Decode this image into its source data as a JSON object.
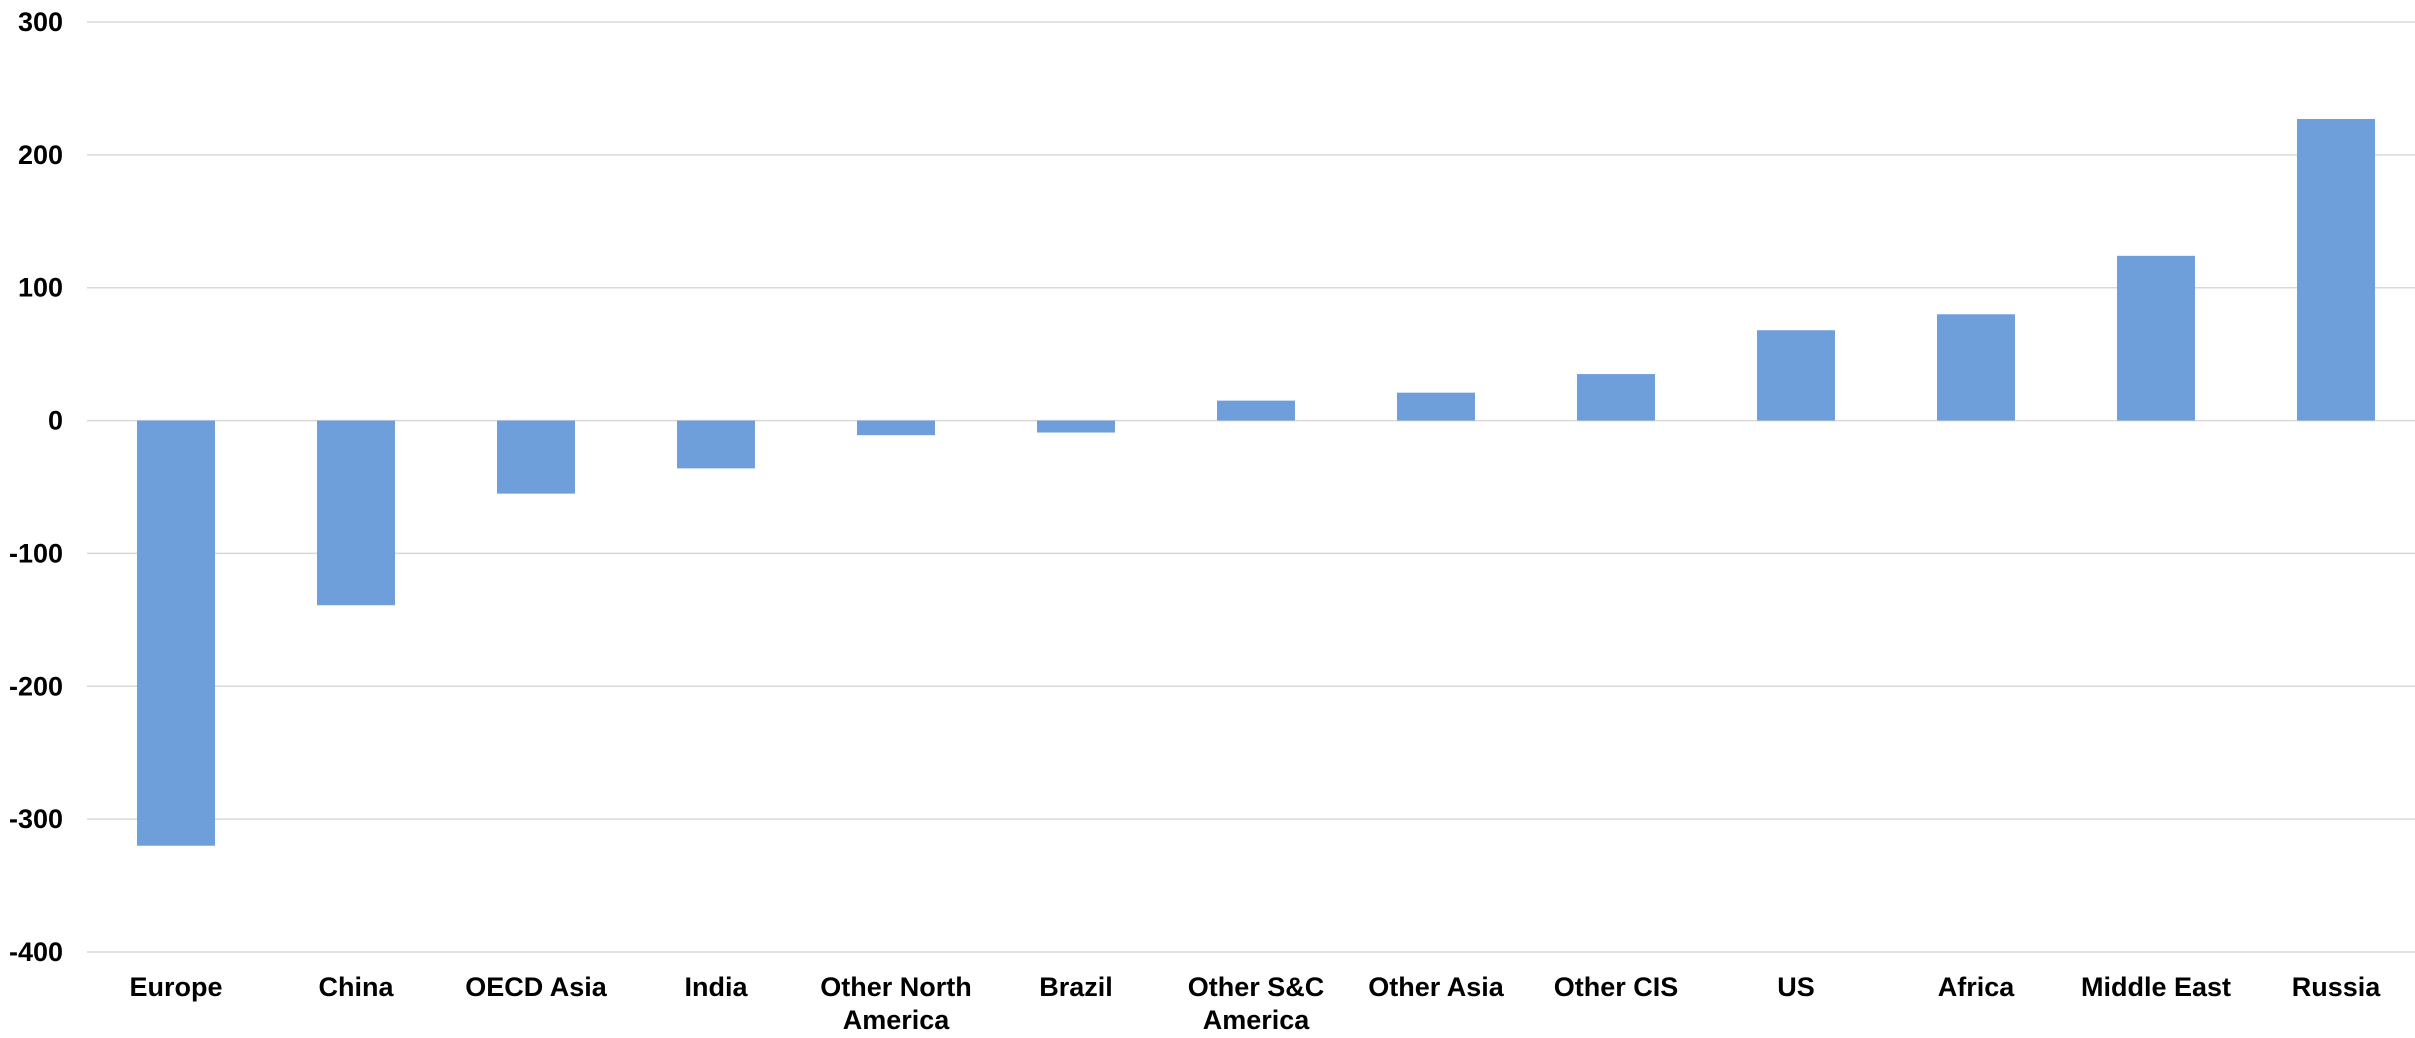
{
  "chart_data": {
    "type": "bar",
    "title": "",
    "xlabel": "",
    "ylabel": "",
    "ylim": [
      -400,
      300
    ],
    "yticks": [
      -400,
      -300,
      -200,
      -100,
      0,
      100,
      200,
      300
    ],
    "grid": true,
    "legend": "none",
    "bar_color": "#6f9fdb",
    "grid_color": "#d9d9d9",
    "categories": [
      [
        "Europe"
      ],
      [
        "China"
      ],
      [
        "OECD Asia"
      ],
      [
        "India"
      ],
      [
        "Other North",
        "America"
      ],
      [
        "Brazil"
      ],
      [
        "Other S&C",
        "America"
      ],
      [
        "Other Asia"
      ],
      [
        "Other CIS"
      ],
      [
        "US"
      ],
      [
        "Africa"
      ],
      [
        "Middle East"
      ],
      [
        "Russia"
      ]
    ],
    "values": [
      -320,
      -139,
      -55,
      -36,
      -11,
      -9,
      15,
      21,
      35,
      68,
      80,
      124,
      227
    ]
  }
}
